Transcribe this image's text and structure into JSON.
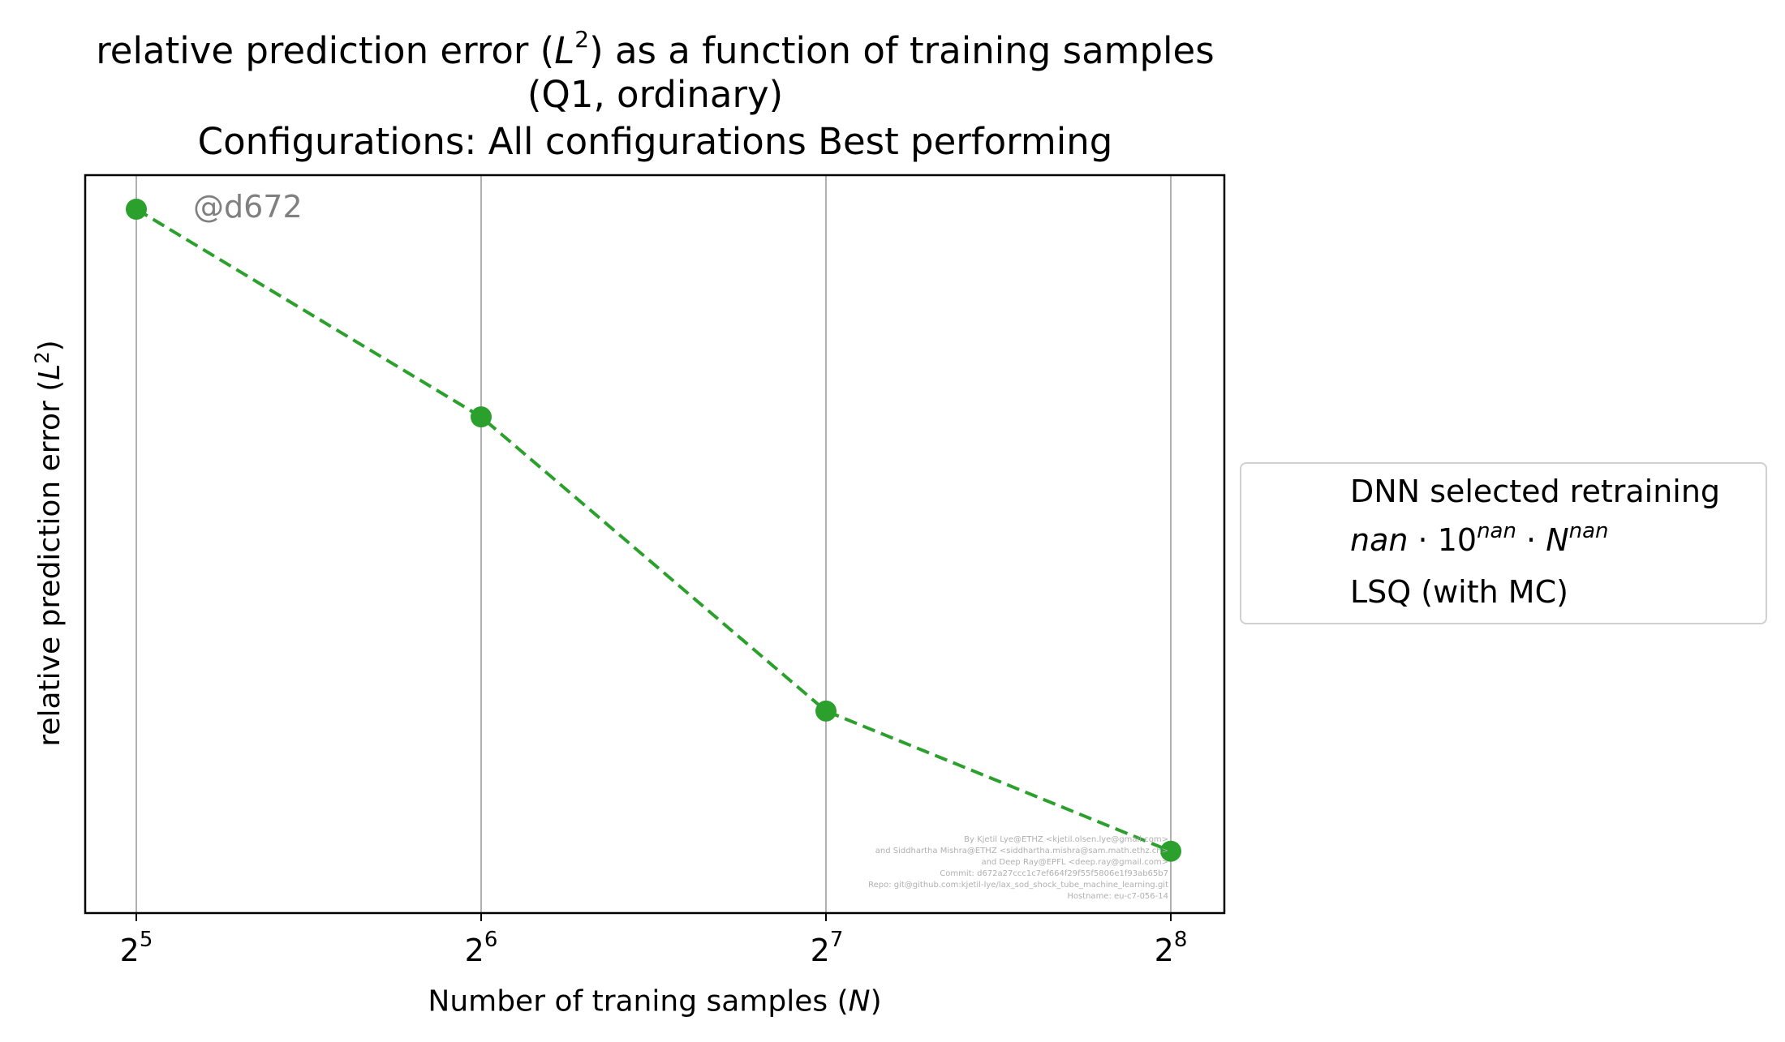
{
  "chart_data": {
    "type": "line",
    "title_lines": [
      "relative prediction error (L²) as a function of training samples",
      "(Q1, ordinary)",
      "Configurations: All configurations Best performing"
    ],
    "xlabel": "Number of traning samples (N)",
    "ylabel": "relative prediction error (L²)",
    "x_scale": "log2",
    "x_ticks": [
      {
        "value": 32,
        "base": "2",
        "exp": "5"
      },
      {
        "value": 64,
        "base": "2",
        "exp": "6"
      },
      {
        "value": 128,
        "base": "2",
        "exp": "7"
      },
      {
        "value": 256,
        "base": "2",
        "exp": "8"
      }
    ],
    "y_scale": "log",
    "y_ticks_shown": false,
    "grid": "vertical",
    "legend_position": "outside-right",
    "series": [
      {
        "name": "DNN selected retraining",
        "marker": "star",
        "color": "#1f77b4",
        "x": [],
        "y": []
      },
      {
        "name": "nan · 10^nan · N^nan",
        "style": "dashed",
        "color": "#ff7f0e",
        "x": [],
        "y": []
      },
      {
        "name": "LSQ (with MC)",
        "style": "dashed",
        "marker": "circle",
        "color": "#2ca02c",
        "x": [
          32,
          64,
          128,
          256
        ],
        "y": [
          1.0,
          0.67,
          0.38,
          0.29
        ]
      }
    ],
    "annotation": "@d672",
    "credits": [
      "By Kjetil Lye@ETHZ <kjetil.olsen.lye@gmail.com>",
      "and Siddhartha Mishra@ETHZ <siddhartha.mishra@sam.math.ethz.ch>",
      "and Deep Ray@EPFL <deep.ray@gmail.com>",
      "Commit: d672a27ccc1c7ef664f29f55f5806e1f93ab65b7",
      "Repo: git@github.com:kjetil-lye/lax_sod_shock_tube_machine_learning.git",
      "Hostname: eu-c7-056-14"
    ]
  },
  "title": {
    "line1_pre": "relative prediction error (",
    "line1_var": "L",
    "line1_sup": "2",
    "line1_post": ") as a function of training samples",
    "line2": "(Q1, ordinary)",
    "line3": "Configurations: All configurations Best performing"
  },
  "axes": {
    "ylabel_pre": "relative prediction error (",
    "ylabel_var": "L",
    "ylabel_sup": "2",
    "ylabel_post": ")",
    "xlabel_pre": "Number of traning samples (",
    "xlabel_var": "N",
    "xlabel_post": ")"
  },
  "legend": {
    "dnn_label": "DNN selected retraining",
    "fit_nan": "nan",
    "fit_dot1": " · 10",
    "fit_sup1": "nan",
    "fit_dot2": " · ",
    "fit_n": "N",
    "fit_sup2": "nan",
    "lsq_label": "LSQ (with MC)"
  },
  "colors": {
    "dnn": "#1f77b4",
    "fit": "#ff7f0e",
    "lsq": "#2ca02c",
    "grid": "#b0b0b0"
  }
}
